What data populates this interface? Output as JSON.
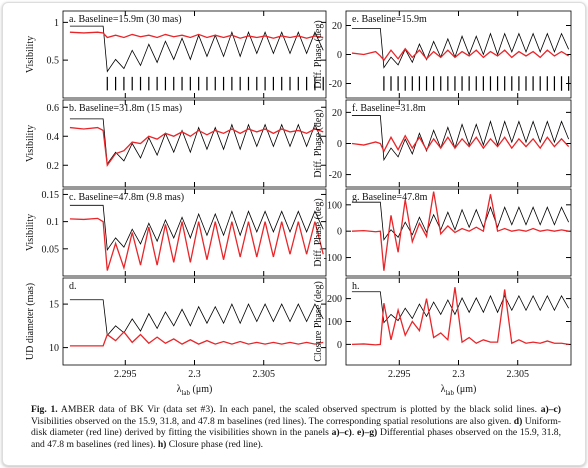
{
  "figure": {
    "xlim": [
      2.2905,
      2.3095
    ],
    "xticks": [
      2.295,
      2.3,
      2.305
    ],
    "xlabel": {
      "symbol": "λ",
      "subscript": "lab",
      "unit": "(μm)"
    },
    "x": [
      2.291,
      2.292,
      2.293,
      2.2934,
      2.2937,
      2.2943,
      2.2949,
      2.2955,
      2.2961,
      2.2967,
      2.2973,
      2.2979,
      2.2985,
      2.2991,
      2.2997,
      2.3003,
      2.3009,
      2.3015,
      2.3021,
      2.3027,
      2.3033,
      2.3039,
      2.3045,
      2.3051,
      2.3057,
      2.3063,
      2.3069,
      2.3075,
      2.3081,
      2.3087,
      2.3093
    ],
    "markers_x": [
      2.2937,
      2.2943,
      2.2949,
      2.2955,
      2.2961,
      2.2967,
      2.2973,
      2.2979,
      2.2985,
      2.2991,
      2.2997,
      2.3003,
      2.3009,
      2.3015,
      2.3021,
      2.3027,
      2.3033,
      2.3039,
      2.3045,
      2.3051,
      2.3057,
      2.3063,
      2.3069,
      2.3075,
      2.3081,
      2.3087,
      2.3093
    ],
    "panels": [
      {
        "label": "a.  Baseline=15.9m (30 mas)",
        "ylabel": "Visibility",
        "ylim": [
          0,
          1.15
        ],
        "yticks": [
          0.5,
          1
        ],
        "marker_span": [
          0.1,
          0.28
        ],
        "series": [
          {
            "color": "#000000",
            "values": [
              0.95,
              0.95,
              0.95,
              0.95,
              0.35,
              0.51,
              0.39,
              0.63,
              0.43,
              0.71,
              0.47,
              0.75,
              0.51,
              0.79,
              0.51,
              0.83,
              0.55,
              0.83,
              0.55,
              0.87,
              0.55,
              0.87,
              0.59,
              0.87,
              0.59,
              0.87,
              0.59,
              0.87,
              0.59,
              0.87,
              0.63
            ]
          },
          {
            "color": "#e8262a",
            "values": [
              0.87,
              0.86,
              0.87,
              0.86,
              0.8,
              0.83,
              0.8,
              0.84,
              0.81,
              0.83,
              0.8,
              0.84,
              0.81,
              0.83,
              0.8,
              0.84,
              0.8,
              0.83,
              0.8,
              0.83,
              0.79,
              0.82,
              0.8,
              0.82,
              0.79,
              0.82,
              0.8,
              0.82,
              0.79,
              0.82,
              0.8
            ]
          }
        ]
      },
      {
        "label": "b.  Baseline=31.8m (15 mas)",
        "ylabel": "Visibility",
        "ylim": [
          0.05,
          0.65
        ],
        "yticks": [
          0.2,
          0.4,
          0.6
        ],
        "series": [
          {
            "color": "#000000",
            "values": [
              0.52,
              0.52,
              0.52,
              0.52,
              0.21,
              0.29,
              0.23,
              0.35,
              0.25,
              0.39,
              0.27,
              0.42,
              0.29,
              0.44,
              0.29,
              0.46,
              0.31,
              0.46,
              0.31,
              0.48,
              0.31,
              0.48,
              0.33,
              0.48,
              0.33,
              0.48,
              0.33,
              0.48,
              0.33,
              0.48,
              0.35
            ]
          },
          {
            "color": "#e8262a",
            "values": [
              0.46,
              0.45,
              0.46,
              0.44,
              0.2,
              0.28,
              0.3,
              0.36,
              0.35,
              0.4,
              0.38,
              0.42,
              0.4,
              0.43,
              0.4,
              0.44,
              0.41,
              0.44,
              0.42,
              0.45,
              0.42,
              0.45,
              0.43,
              0.45,
              0.42,
              0.45,
              0.43,
              0.44,
              0.42,
              0.45,
              0.43
            ]
          }
        ]
      },
      {
        "label": "c.  Baseline=47.8m (9.8 mas)",
        "ylabel": "Visibility",
        "ylim": [
          0,
          0.16
        ],
        "yticks": [
          0.05,
          0.1,
          0.15
        ],
        "series": [
          {
            "color": "#000000",
            "values": [
              0.13,
              0.13,
              0.13,
              0.13,
              0.048,
              0.07,
              0.053,
              0.086,
              0.059,
              0.097,
              0.064,
              0.103,
              0.07,
              0.108,
              0.07,
              0.114,
              0.075,
              0.114,
              0.075,
              0.119,
              0.075,
              0.119,
              0.081,
              0.119,
              0.081,
              0.119,
              0.081,
              0.119,
              0.081,
              0.119,
              0.086
            ]
          },
          {
            "color": "#e8262a",
            "values": [
              0.105,
              0.104,
              0.106,
              0.1,
              0.01,
              0.06,
              0.015,
              0.08,
              0.02,
              0.09,
              0.02,
              0.095,
              0.025,
              0.1,
              0.025,
              0.1,
              0.03,
              0.1,
              0.03,
              0.1,
              0.035,
              0.1,
              0.035,
              0.1,
              0.035,
              0.1,
              0.04,
              0.1,
              0.04,
              0.1,
              0.04
            ]
          }
        ]
      },
      {
        "label": "d.",
        "ylabel": "UD diameter (mas)",
        "ylim": [
          8,
          18
        ],
        "yticks": [
          10,
          15
        ],
        "series": [
          {
            "color": "#000000",
            "values": [
              15.5,
              15.5,
              15.5,
              15.5,
              11.4,
              12.5,
              11.7,
              13.3,
              11.9,
              13.9,
              12.2,
              14.1,
              12.5,
              14.4,
              12.5,
              14.7,
              12.8,
              14.7,
              12.8,
              15,
              12.8,
              15,
              13,
              15,
              13,
              15,
              13,
              15,
              13,
              15,
              13.3
            ]
          },
          {
            "color": "#e8262a",
            "values": [
              10.2,
              10.2,
              10.2,
              10.2,
              11.5,
              10.8,
              11.8,
              10.6,
              11.5,
              10.5,
              11.2,
              10.5,
              11,
              10.4,
              10.9,
              10.4,
              10.8,
              10.4,
              10.7,
              10.4,
              10.7,
              10.4,
              10.6,
              10.4,
              10.6,
              10.4,
              10.6,
              10.4,
              10.6,
              10.4,
              10.6
            ]
          }
        ]
      },
      {
        "label": "e.  Baseline=15.9m",
        "ylabel": "Diff. Phase (deg)",
        "ylim": [
          -30,
          30
        ],
        "yticks": [
          -20,
          0,
          20
        ],
        "marker_span": [
          -25,
          -15
        ],
        "series": [
          {
            "color": "#000000",
            "values": [
              18,
              18,
              18,
              18,
              -9,
              -1.8,
              -7.2,
              3.6,
              -5.4,
              7.2,
              -3.6,
              9,
              -1.8,
              10.8,
              -1.8,
              12.6,
              0,
              12.6,
              0,
              14.4,
              0,
              14.4,
              1.8,
              14.4,
              1.8,
              14.4,
              1.8,
              14.4,
              1.8,
              14.4,
              3.6
            ]
          },
          {
            "color": "#e8262a",
            "values": [
              1,
              0,
              2,
              -1,
              -4,
              3,
              -3,
              4,
              -2,
              3,
              -3,
              2,
              -2,
              3,
              -2,
              2,
              -1,
              3,
              -2,
              2,
              -1,
              3,
              -2,
              2,
              -1,
              2,
              -2,
              3,
              -1,
              2,
              -1
            ]
          }
        ]
      },
      {
        "label": "f.  Baseline=31.8m",
        "ylabel": "Diff. Phase (deg)",
        "ylim": [
          -28,
          28
        ],
        "yticks": [
          -20,
          0,
          20
        ],
        "series": [
          {
            "color": "#000000",
            "values": [
              18,
              18,
              18,
              18,
              -10.5,
              -2.9,
              -8.6,
              2.8,
              -6.7,
              6.6,
              -4.8,
              8.5,
              -2.9,
              10.4,
              -2.9,
              12.3,
              -1,
              12.3,
              -1,
              14.2,
              -1,
              14.2,
              0.9,
              14.2,
              0.9,
              14.2,
              0.9,
              14.2,
              0.9,
              14.2,
              2.8
            ]
          },
          {
            "color": "#e8262a",
            "values": [
              0,
              -1,
              1,
              0,
              -5,
              4,
              -4,
              5,
              -3,
              4,
              -4,
              3,
              -3,
              4,
              -3,
              3,
              -2,
              4,
              -3,
              3,
              -2,
              4,
              -3,
              3,
              -2,
              3,
              -3,
              4,
              -2,
              3,
              -2
            ]
          }
        ]
      },
      {
        "label": "g.  Baseline=47.8m",
        "ylabel": "Diff. Phase (deg)",
        "ylim": [
          -170,
          160
        ],
        "yticks": [
          -100,
          0,
          100
        ],
        "series": [
          {
            "color": "#000000",
            "values": [
              110,
              110,
              110,
              110,
              -32.5,
              5.5,
              -23,
              34,
              -13.5,
              53,
              -4,
              62.5,
              5.5,
              72,
              5.5,
              81.5,
              15,
              81.5,
              15,
              91,
              15,
              91,
              24.5,
              91,
              24.5,
              91,
              24.5,
              91,
              24.5,
              91,
              34
            ]
          },
          {
            "color": "#e8262a",
            "values": [
              0,
              2,
              -2,
              0,
              -150,
              60,
              -80,
              120,
              -40,
              30,
              -20,
              150,
              -10,
              20,
              -5,
              10,
              0,
              15,
              0,
              140,
              0,
              10,
              0,
              5,
              0,
              10,
              0,
              5,
              0,
              5,
              0
            ]
          }
        ]
      },
      {
        "label": "h.",
        "ylabel": "Closure Phase (deg)",
        "ylim": [
          -90,
          290
        ],
        "yticks": [
          0,
          100,
          200
        ],
        "series": [
          {
            "color": "#000000",
            "values": [
              230,
              230,
              230,
              230,
              95,
              131,
              104,
              158,
              113,
              176,
              122,
              185,
              131,
              194,
              131,
              203,
              140,
              203,
              140,
              212,
              140,
              212,
              149,
              212,
              149,
              212,
              149,
              212,
              149,
              212,
              158
            ]
          },
          {
            "color": "#e8262a",
            "values": [
              0,
              2,
              -2,
              0,
              180,
              20,
              150,
              40,
              100,
              60,
              200,
              30,
              50,
              20,
              250,
              10,
              30,
              5,
              20,
              10,
              10,
              240,
              5,
              20,
              5,
              10,
              5,
              15,
              5,
              5,
              0
            ]
          }
        ]
      }
    ]
  },
  "caption": [
    {
      "text": "Fig. 1.",
      "bold": true
    },
    {
      "text": " AMBER data of BK Vir (data set #3). In each panel, the scaled observed spectrum is plotted by the black solid lines. "
    },
    {
      "text": "a)–c)",
      "bold": true
    },
    {
      "text": " Visibilities observed on the 15.9, 31.8, and 47.8 m baselines (red lines). The corresponding spatial resolutions are also given. "
    },
    {
      "text": "d)",
      "bold": true
    },
    {
      "text": " Uniform-disk diameter (red line) derived by fitting the visibilities shown in the panels "
    },
    {
      "text": "a)–c)",
      "bold": true
    },
    {
      "text": ". "
    },
    {
      "text": "e)–g)",
      "bold": true
    },
    {
      "text": " Differential phases observed on the 15.9, 31.8, and 47.8 m baselines (red lines). "
    },
    {
      "text": "h)",
      "bold": true
    },
    {
      "text": " Closure phase (red line)."
    }
  ]
}
